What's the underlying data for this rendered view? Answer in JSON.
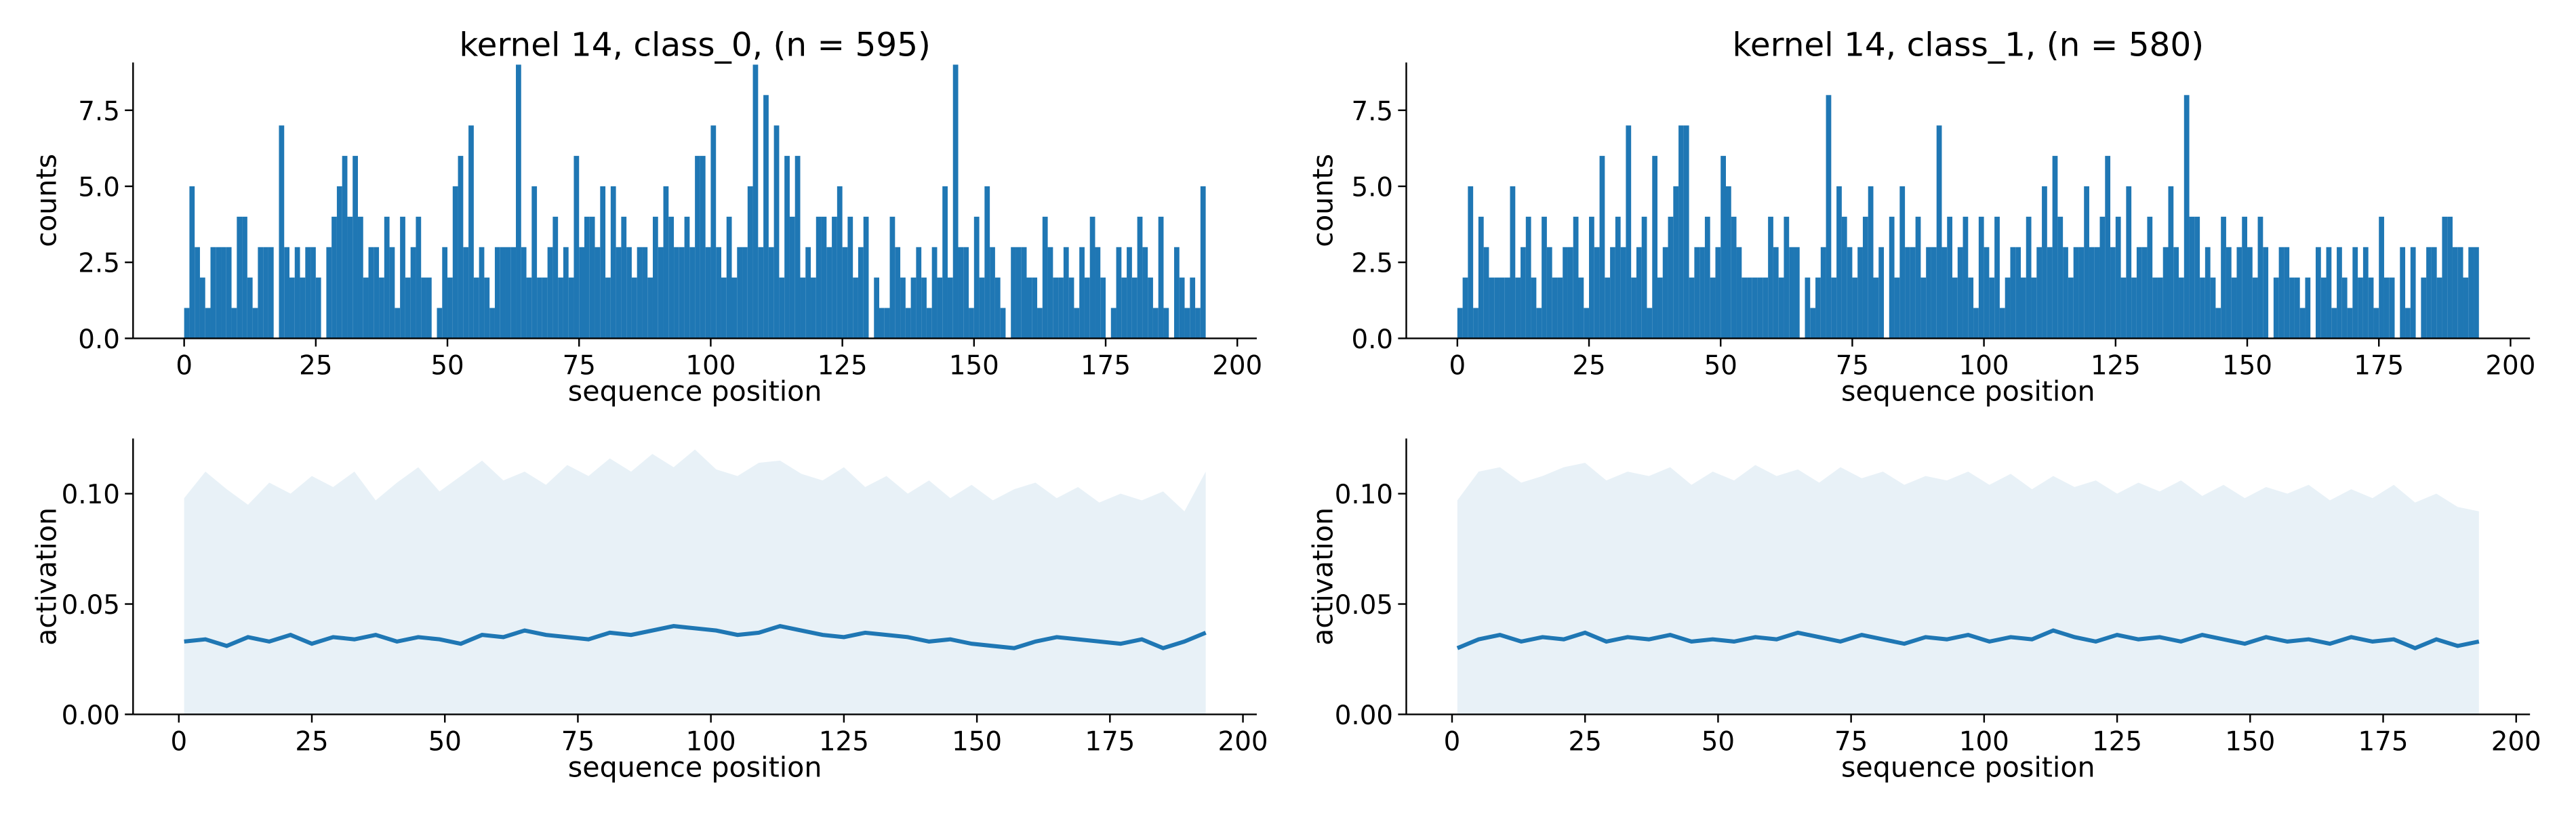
{
  "chart_data": [
    {
      "type": "histogram",
      "title": "kernel 14, class_0, (n = 595)",
      "xlabel": "sequence position",
      "ylabel": "counts",
      "color": "#1f77b4",
      "bins": [
        0,
        1,
        2,
        3,
        4,
        5,
        6,
        7,
        8,
        9,
        10,
        11,
        12,
        13,
        14,
        15,
        16,
        17,
        18,
        19,
        20,
        21,
        22,
        23,
        24,
        25,
        26,
        27,
        28,
        29,
        30,
        31,
        32,
        33,
        34,
        35,
        36,
        37,
        38,
        39,
        40,
        41,
        42,
        43,
        44,
        45,
        46,
        47,
        48,
        49,
        50,
        51,
        52,
        53,
        54,
        55,
        56,
        57,
        58,
        59,
        60,
        61,
        62,
        63,
        64,
        65,
        66,
        67,
        68,
        69,
        70,
        71,
        72,
        73,
        74,
        75,
        76,
        77,
        78,
        79,
        80,
        81,
        82,
        83,
        84,
        85,
        86,
        87,
        88,
        89,
        90,
        91,
        92,
        93,
        94,
        95,
        96,
        97,
        98,
        99,
        100,
        101,
        102,
        103,
        104,
        105,
        106,
        107,
        108,
        109,
        110,
        111,
        112,
        113,
        114,
        115,
        116,
        117,
        118,
        119,
        120,
        121,
        122,
        123,
        124,
        125,
        126,
        127,
        128,
        129,
        130,
        131,
        132,
        133,
        134,
        135,
        136,
        137,
        138,
        139,
        140,
        141,
        142,
        143,
        144,
        145,
        146,
        147,
        148,
        149,
        150,
        151,
        152,
        153,
        154,
        155,
        156,
        157,
        158,
        159,
        160,
        161,
        162,
        163,
        164,
        165,
        166,
        167,
        168,
        169,
        170,
        171,
        172,
        173,
        174,
        175,
        176,
        177,
        178,
        179,
        180,
        181,
        182,
        183,
        184,
        185,
        186,
        187,
        188,
        189,
        190,
        191,
        192,
        193,
        194
      ],
      "counts": [
        1,
        5,
        3,
        2,
        1,
        3,
        3,
        3,
        3,
        1,
        4,
        4,
        2,
        1,
        3,
        3,
        3,
        0,
        7,
        3,
        2,
        3,
        2,
        3,
        3,
        2,
        0,
        3,
        4,
        5,
        6,
        4,
        6,
        4,
        2,
        3,
        3,
        2,
        4,
        3,
        1,
        4,
        2,
        3,
        4,
        2,
        2,
        0,
        1,
        3,
        2,
        5,
        6,
        3,
        7,
        2,
        3,
        2,
        1,
        3,
        3,
        3,
        3,
        9,
        3,
        2,
        5,
        2,
        2,
        3,
        4,
        2,
        3,
        2,
        6,
        3,
        4,
        4,
        3,
        5,
        2,
        5,
        3,
        4,
        3,
        2,
        3,
        3,
        2,
        4,
        3,
        5,
        4,
        3,
        3,
        4,
        3,
        6,
        6,
        3,
        7,
        3,
        2,
        4,
        2,
        3,
        3,
        5,
        9,
        3,
        8,
        3,
        7,
        2,
        6,
        4,
        6,
        2,
        3,
        2,
        4,
        4,
        3,
        4,
        5,
        3,
        4,
        2,
        3,
        4,
        0,
        2,
        1,
        1,
        4,
        3,
        2,
        1,
        2,
        3,
        2,
        1,
        3,
        2,
        5,
        2,
        9,
        3,
        3,
        1,
        4,
        2,
        5,
        3,
        2,
        1,
        0,
        3,
        3,
        3,
        2,
        2,
        1,
        4,
        3,
        2,
        2,
        3,
        2,
        1,
        3,
        2,
        4,
        3,
        2,
        0,
        1,
        3,
        2,
        3,
        2,
        4,
        3,
        2,
        1,
        4,
        1,
        0,
        3,
        2,
        1,
        2,
        1,
        5
      ],
      "xlim": [
        -9.7,
        203.7
      ],
      "ylim": [
        0,
        9.07
      ],
      "xticks": [
        0,
        25,
        50,
        75,
        100,
        125,
        150,
        175,
        200
      ],
      "yticks": [
        {
          "value": 0,
          "label": "0.0"
        },
        2.5,
        {
          "value": 5,
          "label": "5.0"
        },
        7.5
      ]
    },
    {
      "type": "histogram",
      "title": "kernel 14, class_1, (n = 580)",
      "xlabel": "sequence position",
      "ylabel": "counts",
      "color": "#1f77b4",
      "bins": [
        0,
        1,
        2,
        3,
        4,
        5,
        6,
        7,
        8,
        9,
        10,
        11,
        12,
        13,
        14,
        15,
        16,
        17,
        18,
        19,
        20,
        21,
        22,
        23,
        24,
        25,
        26,
        27,
        28,
        29,
        30,
        31,
        32,
        33,
        34,
        35,
        36,
        37,
        38,
        39,
        40,
        41,
        42,
        43,
        44,
        45,
        46,
        47,
        48,
        49,
        50,
        51,
        52,
        53,
        54,
        55,
        56,
        57,
        58,
        59,
        60,
        61,
        62,
        63,
        64,
        65,
        66,
        67,
        68,
        69,
        70,
        71,
        72,
        73,
        74,
        75,
        76,
        77,
        78,
        79,
        80,
        81,
        82,
        83,
        84,
        85,
        86,
        87,
        88,
        89,
        90,
        91,
        92,
        93,
        94,
        95,
        96,
        97,
        98,
        99,
        100,
        101,
        102,
        103,
        104,
        105,
        106,
        107,
        108,
        109,
        110,
        111,
        112,
        113,
        114,
        115,
        116,
        117,
        118,
        119,
        120,
        121,
        122,
        123,
        124,
        125,
        126,
        127,
        128,
        129,
        130,
        131,
        132,
        133,
        134,
        135,
        136,
        137,
        138,
        139,
        140,
        141,
        142,
        143,
        144,
        145,
        146,
        147,
        148,
        149,
        150,
        151,
        152,
        153,
        154,
        155,
        156,
        157,
        158,
        159,
        160,
        161,
        162,
        163,
        164,
        165,
        166,
        167,
        168,
        169,
        170,
        171,
        172,
        173,
        174,
        175,
        176,
        177,
        178,
        179,
        180,
        181,
        182,
        183,
        184,
        185,
        186,
        187,
        188,
        189,
        190,
        191,
        192,
        193,
        194
      ],
      "counts": [
        1,
        2,
        5,
        1,
        4,
        3,
        2,
        2,
        2,
        2,
        5,
        2,
        3,
        4,
        2,
        1,
        4,
        3,
        2,
        2,
        3,
        3,
        4,
        2,
        1,
        4,
        3,
        6,
        2,
        3,
        4,
        3,
        7,
        2,
        3,
        4,
        1,
        6,
        2,
        3,
        4,
        5,
        7,
        7,
        2,
        3,
        3,
        4,
        2,
        3,
        6,
        5,
        4,
        3,
        2,
        2,
        2,
        2,
        2,
        4,
        3,
        2,
        4,
        3,
        3,
        0,
        2,
        1,
        2,
        3,
        8,
        2,
        5,
        4,
        3,
        2,
        3,
        4,
        5,
        2,
        3,
        0,
        4,
        2,
        5,
        3,
        3,
        4,
        2,
        3,
        3,
        7,
        3,
        4,
        2,
        3,
        4,
        2,
        1,
        4,
        3,
        2,
        4,
        1,
        2,
        3,
        3,
        2,
        4,
        2,
        3,
        5,
        3,
        6,
        4,
        3,
        2,
        3,
        3,
        5,
        3,
        3,
        4,
        6,
        3,
        4,
        2,
        5,
        2,
        3,
        3,
        4,
        2,
        2,
        3,
        5,
        3,
        2,
        8,
        4,
        4,
        2,
        3,
        2,
        1,
        4,
        3,
        2,
        3,
        4,
        3,
        2,
        4,
        3,
        0,
        2,
        3,
        3,
        2,
        2,
        1,
        2,
        0,
        3,
        2,
        3,
        1,
        3,
        2,
        1,
        3,
        2,
        3,
        2,
        1,
        4,
        2,
        2,
        0,
        3,
        1,
        3,
        0,
        2,
        3,
        3,
        2,
        4,
        4,
        3,
        3,
        2,
        3,
        3
      ],
      "xlim": [
        -9.7,
        203.7
      ],
      "ylim": [
        0,
        9.07
      ],
      "xticks": [
        0,
        25,
        50,
        75,
        100,
        125,
        150,
        175,
        200
      ],
      "yticks": [
        {
          "value": 0,
          "label": "0.0"
        },
        2.5,
        {
          "value": 5,
          "label": "5.0"
        },
        7.5
      ]
    },
    {
      "type": "line",
      "xlabel": "sequence position",
      "ylabel": "activation",
      "color": "#1f77b4",
      "x": [
        1,
        5,
        9,
        13,
        17,
        21,
        25,
        29,
        33,
        37,
        41,
        45,
        49,
        53,
        57,
        61,
        65,
        69,
        73,
        77,
        81,
        85,
        89,
        93,
        97,
        101,
        105,
        109,
        113,
        117,
        121,
        125,
        129,
        133,
        137,
        141,
        145,
        149,
        153,
        157,
        161,
        165,
        169,
        173,
        177,
        181,
        185,
        189,
        193
      ],
      "values": [
        0.033,
        0.034,
        0.031,
        0.035,
        0.033,
        0.036,
        0.032,
        0.035,
        0.034,
        0.036,
        0.033,
        0.035,
        0.034,
        0.032,
        0.036,
        0.035,
        0.038,
        0.036,
        0.035,
        0.034,
        0.037,
        0.036,
        0.038,
        0.04,
        0.039,
        0.038,
        0.036,
        0.037,
        0.04,
        0.038,
        0.036,
        0.035,
        0.037,
        0.036,
        0.035,
        0.033,
        0.034,
        0.032,
        0.031,
        0.03,
        0.033,
        0.035,
        0.034,
        0.033,
        0.032,
        0.034,
        0.03,
        0.033,
        0.037
      ],
      "upper": [
        0.098,
        0.11,
        0.102,
        0.095,
        0.105,
        0.1,
        0.108,
        0.103,
        0.11,
        0.097,
        0.105,
        0.112,
        0.101,
        0.108,
        0.115,
        0.106,
        0.11,
        0.104,
        0.113,
        0.108,
        0.116,
        0.11,
        0.118,
        0.112,
        0.12,
        0.111,
        0.108,
        0.114,
        0.115,
        0.109,
        0.106,
        0.112,
        0.103,
        0.108,
        0.1,
        0.106,
        0.098,
        0.104,
        0.097,
        0.102,
        0.105,
        0.098,
        0.103,
        0.096,
        0.1,
        0.097,
        0.101,
        0.092,
        0.11
      ],
      "xlim": [
        -8.6,
        202.6
      ],
      "ylim": [
        0,
        0.125
      ],
      "xticks": [
        0,
        25,
        50,
        75,
        100,
        125,
        150,
        175,
        200
      ],
      "yticks": [
        {
          "value": 0,
          "label": "0.00"
        },
        0.05,
        {
          "value": 0.1,
          "label": "0.10"
        }
      ]
    },
    {
      "type": "line",
      "xlabel": "sequence position",
      "ylabel": "activation",
      "color": "#1f77b4",
      "x": [
        1,
        5,
        9,
        13,
        17,
        21,
        25,
        29,
        33,
        37,
        41,
        45,
        49,
        53,
        57,
        61,
        65,
        69,
        73,
        77,
        81,
        85,
        89,
        93,
        97,
        101,
        105,
        109,
        113,
        117,
        121,
        125,
        129,
        133,
        137,
        141,
        145,
        149,
        153,
        157,
        161,
        165,
        169,
        173,
        177,
        181,
        185,
        189,
        193
      ],
      "values": [
        0.03,
        0.034,
        0.036,
        0.033,
        0.035,
        0.034,
        0.037,
        0.033,
        0.035,
        0.034,
        0.036,
        0.033,
        0.034,
        0.033,
        0.035,
        0.034,
        0.037,
        0.035,
        0.033,
        0.036,
        0.034,
        0.032,
        0.035,
        0.034,
        0.036,
        0.033,
        0.035,
        0.034,
        0.038,
        0.035,
        0.033,
        0.036,
        0.034,
        0.035,
        0.033,
        0.036,
        0.034,
        0.032,
        0.035,
        0.033,
        0.034,
        0.032,
        0.035,
        0.033,
        0.034,
        0.03,
        0.034,
        0.031,
        0.033
      ],
      "upper": [
        0.097,
        0.11,
        0.112,
        0.105,
        0.108,
        0.112,
        0.114,
        0.106,
        0.11,
        0.108,
        0.112,
        0.104,
        0.11,
        0.106,
        0.113,
        0.108,
        0.111,
        0.105,
        0.112,
        0.107,
        0.11,
        0.104,
        0.108,
        0.106,
        0.11,
        0.104,
        0.109,
        0.102,
        0.108,
        0.103,
        0.106,
        0.1,
        0.105,
        0.101,
        0.106,
        0.099,
        0.104,
        0.098,
        0.103,
        0.1,
        0.104,
        0.097,
        0.102,
        0.098,
        0.104,
        0.096,
        0.1,
        0.094,
        0.092
      ],
      "xlim": [
        -8.6,
        202.6
      ],
      "ylim": [
        0,
        0.125
      ],
      "xticks": [
        0,
        25,
        50,
        75,
        100,
        125,
        150,
        175,
        200
      ],
      "yticks": [
        {
          "value": 0,
          "label": "0.00"
        },
        0.05,
        {
          "value": 0.1,
          "label": "0.10"
        }
      ]
    }
  ]
}
